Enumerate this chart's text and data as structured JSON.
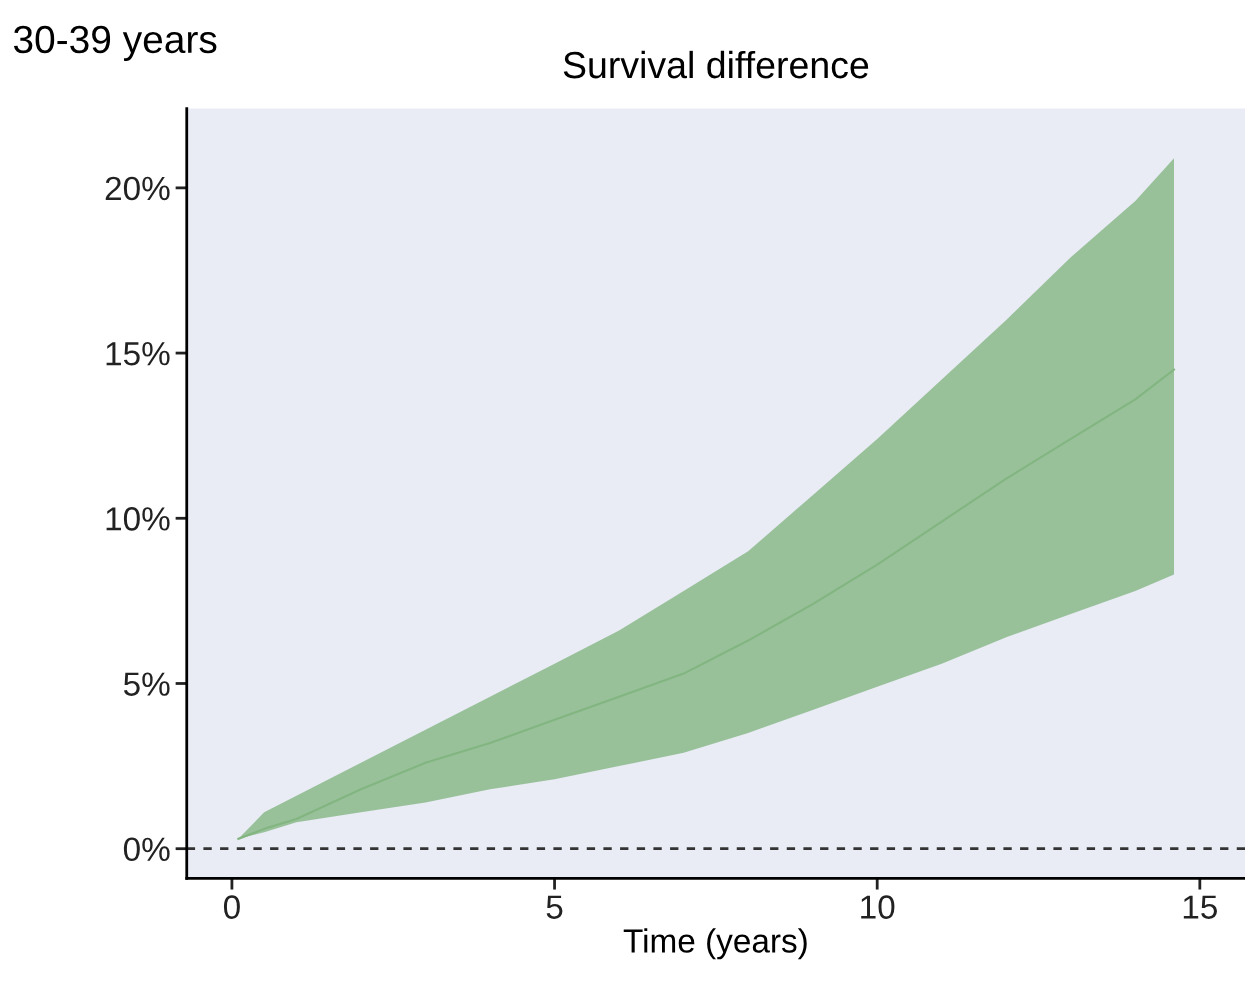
{
  "chart_data": {
    "type": "line",
    "subtitle": "30-39 years",
    "title": "Survival difference",
    "xlabel": "Time (years)",
    "x": [
      0.1,
      0.5,
      1,
      2,
      3,
      4,
      5,
      6,
      7,
      8,
      9,
      10,
      11,
      12,
      13,
      14,
      14.6
    ],
    "series": [
      {
        "color": "#82b580",
        "values": [
          0.3,
          0.6,
          0.9,
          1.8,
          2.6,
          3.2,
          3.9,
          4.6,
          5.3,
          6.3,
          7.4,
          8.6,
          9.9,
          11.2,
          12.4,
          13.6,
          14.5
        ],
        "lower": [
          0.3,
          0.5,
          0.8,
          1.1,
          1.4,
          1.8,
          2.1,
          2.5,
          2.9,
          3.5,
          4.2,
          4.9,
          5.6,
          6.4,
          7.1,
          7.8,
          8.3
        ],
        "upper": [
          0.3,
          1.1,
          1.6,
          2.6,
          3.6,
          4.6,
          5.6,
          6.6,
          7.8,
          9.0,
          10.7,
          12.4,
          14.2,
          16.0,
          17.9,
          19.6,
          20.9
        ]
      }
    ],
    "xlim": [
      -0.7,
      15.7
    ],
    "xticks": [
      0,
      5,
      10,
      15
    ],
    "ylim": [
      -0.9,
      22.4
    ],
    "yticks": [
      {
        "value": 0,
        "label": "0%"
      },
      {
        "value": 5,
        "label": "5%"
      },
      {
        "value": 10,
        "label": "10%"
      },
      {
        "value": 15,
        "label": "15%"
      },
      {
        "value": 20,
        "label": "20%"
      }
    ],
    "ref_lines": [
      {
        "axis": "y",
        "value": 0,
        "color": "#333333",
        "line_style": "dashed"
      }
    ],
    "grid": false,
    "legend": false,
    "marker": "none",
    "line_style": "solid"
  }
}
